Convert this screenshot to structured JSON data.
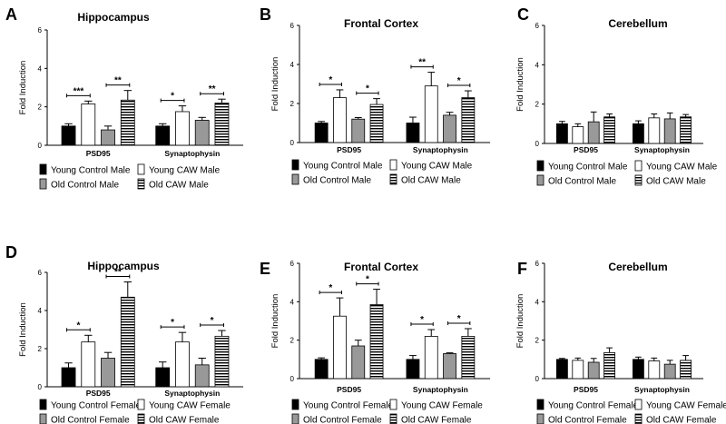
{
  "figure": {
    "ylabel": "Fold Induction",
    "legend_colors": {
      "young_control": "#000000",
      "young_caw": "#ffffff",
      "old_control": "#999999",
      "old_caw": "striped"
    }
  },
  "chart_data": [
    {
      "type": "bar",
      "panel": "A",
      "title": "Hippocampus",
      "ylabel": "Fold Induction",
      "categories": [
        "PSD95",
        "Synaptophysin"
      ],
      "ylim": [
        0,
        6
      ],
      "yticks": [
        0,
        2,
        4,
        6
      ],
      "series": [
        {
          "name": "Young Control Male",
          "values": [
            1.0,
            1.0
          ],
          "errors": [
            0.12,
            0.12
          ]
        },
        {
          "name": "Young CAW Male",
          "values": [
            2.15,
            1.75
          ],
          "errors": [
            0.15,
            0.3
          ]
        },
        {
          "name": "Old Control Male",
          "values": [
            0.8,
            1.3
          ],
          "errors": [
            0.2,
            0.15
          ]
        },
        {
          "name": "Old CAW Male",
          "values": [
            2.35,
            2.2
          ],
          "errors": [
            0.5,
            0.2
          ]
        }
      ],
      "annotations": [
        {
          "group": 0,
          "from": 0,
          "to": 1,
          "label": "***"
        },
        {
          "group": 0,
          "from": 2,
          "to": 3,
          "label": "**"
        },
        {
          "group": 1,
          "from": 0,
          "to": 1,
          "label": "*"
        },
        {
          "group": 1,
          "from": 2,
          "to": 3,
          "label": "**"
        }
      ]
    },
    {
      "type": "bar",
      "panel": "B",
      "title": "Frontal  Cortex",
      "ylabel": "Fold Induction",
      "categories": [
        "PSD95",
        "Synaptophysin"
      ],
      "ylim": [
        0,
        6
      ],
      "yticks": [
        0,
        2,
        4,
        6
      ],
      "series": [
        {
          "name": "Young Control Male",
          "values": [
            1.0,
            1.0
          ],
          "errors": [
            0.08,
            0.3
          ]
        },
        {
          "name": "Young CAW Male",
          "values": [
            2.3,
            2.9
          ],
          "errors": [
            0.4,
            0.7
          ]
        },
        {
          "name": "Old Control Male",
          "values": [
            1.2,
            1.4
          ],
          "errors": [
            0.08,
            0.15
          ]
        },
        {
          "name": "Old CAW Male",
          "values": [
            1.95,
            2.3
          ],
          "errors": [
            0.3,
            0.35
          ]
        }
      ],
      "annotations": [
        {
          "group": 0,
          "from": 0,
          "to": 1,
          "label": "*"
        },
        {
          "group": 0,
          "from": 2,
          "to": 3,
          "label": "*"
        },
        {
          "group": 1,
          "from": 0,
          "to": 1,
          "label": "**"
        },
        {
          "group": 1,
          "from": 2,
          "to": 3,
          "label": "*"
        }
      ]
    },
    {
      "type": "bar",
      "panel": "C",
      "title": "Cerebellum",
      "ylabel": "Fold Induction",
      "categories": [
        "PSD95",
        "Synaptophysin"
      ],
      "ylim": [
        0,
        6
      ],
      "yticks": [
        0,
        2,
        4,
        6
      ],
      "series": [
        {
          "name": "Young Control Male",
          "values": [
            1.0,
            1.0
          ],
          "errors": [
            0.12,
            0.15
          ]
        },
        {
          "name": "Young CAW Male",
          "values": [
            0.85,
            1.3
          ],
          "errors": [
            0.15,
            0.2
          ]
        },
        {
          "name": "Old Control Male",
          "values": [
            1.1,
            1.25
          ],
          "errors": [
            0.5,
            0.3
          ]
        },
        {
          "name": "Old CAW Male",
          "values": [
            1.35,
            1.35
          ],
          "errors": [
            0.15,
            0.12
          ]
        }
      ],
      "annotations": []
    },
    {
      "type": "bar",
      "panel": "D",
      "title": "Hippocampus",
      "ylabel": "Fold Induction",
      "categories": [
        "PSD95",
        "Synaptophysin"
      ],
      "ylim": [
        0,
        6
      ],
      "yticks": [
        0,
        2,
        4,
        6
      ],
      "series": [
        {
          "name": "Young Control Female",
          "values": [
            1.0,
            1.0
          ],
          "errors": [
            0.25,
            0.3
          ]
        },
        {
          "name": "Young CAW Female",
          "values": [
            2.35,
            2.35
          ],
          "errors": [
            0.35,
            0.5
          ]
        },
        {
          "name": "Old Control Female",
          "values": [
            1.5,
            1.15
          ],
          "errors": [
            0.3,
            0.35
          ]
        },
        {
          "name": "Old CAW Female",
          "values": [
            4.7,
            2.65
          ],
          "errors": [
            0.8,
            0.3
          ]
        }
      ],
      "annotations": [
        {
          "group": 0,
          "from": 0,
          "to": 1,
          "label": "*"
        },
        {
          "group": 0,
          "from": 2,
          "to": 3,
          "label": "**"
        },
        {
          "group": 1,
          "from": 0,
          "to": 1,
          "label": "*"
        },
        {
          "group": 1,
          "from": 2,
          "to": 3,
          "label": "*"
        }
      ]
    },
    {
      "type": "bar",
      "panel": "E",
      "title": "Frontal  Cortex",
      "ylabel": "Fold Induction",
      "categories": [
        "PSD95",
        "Synaptophysin"
      ],
      "ylim": [
        0,
        6
      ],
      "yticks": [
        0,
        2,
        4,
        6
      ],
      "series": [
        {
          "name": "Young Control Female",
          "values": [
            1.0,
            1.0
          ],
          "errors": [
            0.08,
            0.2
          ]
        },
        {
          "name": "Young CAW Female",
          "values": [
            3.25,
            2.2
          ],
          "errors": [
            0.95,
            0.35
          ]
        },
        {
          "name": "Old Control Female",
          "values": [
            1.7,
            1.3
          ],
          "errors": [
            0.3,
            0.04
          ]
        },
        {
          "name": "Old CAW Female",
          "values": [
            3.85,
            2.2
          ],
          "errors": [
            0.8,
            0.4
          ]
        }
      ],
      "annotations": [
        {
          "group": 0,
          "from": 0,
          "to": 1,
          "label": "*"
        },
        {
          "group": 0,
          "from": 2,
          "to": 3,
          "label": "*"
        },
        {
          "group": 1,
          "from": 0,
          "to": 1,
          "label": "*"
        },
        {
          "group": 1,
          "from": 2,
          "to": 3,
          "label": "*"
        }
      ]
    },
    {
      "type": "bar",
      "panel": "F",
      "title": "Cerebellum",
      "ylabel": "Fold Induction",
      "categories": [
        "PSD95",
        "Synaptophysin"
      ],
      "ylim": [
        0,
        6
      ],
      "yticks": [
        0,
        2,
        4,
        6
      ],
      "series": [
        {
          "name": "Young Control Female",
          "values": [
            1.0,
            1.0
          ],
          "errors": [
            0.05,
            0.12
          ]
        },
        {
          "name": "Young CAW Female",
          "values": [
            0.95,
            0.92
          ],
          "errors": [
            0.12,
            0.15
          ]
        },
        {
          "name": "Old Control Female",
          "values": [
            0.85,
            0.75
          ],
          "errors": [
            0.2,
            0.2
          ]
        },
        {
          "name": "Old CAW Female",
          "values": [
            1.35,
            0.95
          ],
          "errors": [
            0.25,
            0.25
          ]
        }
      ],
      "annotations": []
    }
  ]
}
